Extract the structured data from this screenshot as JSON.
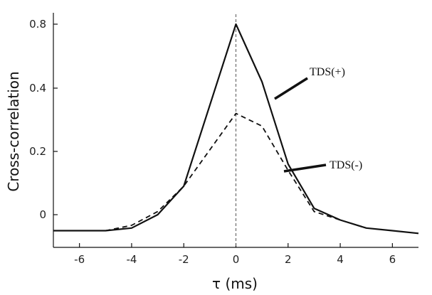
{
  "chart_data": {
    "type": "line",
    "xlabel": "τ (ms)",
    "ylabel": "Cross-correlation",
    "xlim": [
      -7,
      7
    ],
    "xticks": [
      -6,
      -4,
      -2,
      0,
      2,
      4,
      6
    ],
    "yticks": [
      {
        "value": 0,
        "label": "0"
      },
      {
        "value": 0.2,
        "label": "0.2"
      },
      {
        "value": 0.4,
        "label": "0.4"
      },
      {
        "value": 0.8,
        "label": "0.8"
      }
    ],
    "reference_line": {
      "x": 0,
      "style": "dashed"
    },
    "series": [
      {
        "name": "TDS(+)",
        "style": "solid",
        "x": [
          -7,
          -5,
          -4,
          -3,
          -2,
          0,
          1,
          2,
          3,
          4,
          5,
          6,
          7
        ],
        "y": [
          -0.03,
          -0.03,
          -0.025,
          0.0,
          0.09,
          0.8,
          0.44,
          0.16,
          0.02,
          -0.01,
          -0.025,
          -0.03,
          -0.035
        ]
      },
      {
        "name": "TDS(-)",
        "style": "dashed",
        "x": [
          -5,
          -4,
          -3,
          -2,
          0,
          1,
          2,
          3,
          4
        ],
        "y": [
          -0.03,
          -0.02,
          0.01,
          0.09,
          0.32,
          0.28,
          0.14,
          0.01,
          -0.01
        ]
      }
    ]
  }
}
